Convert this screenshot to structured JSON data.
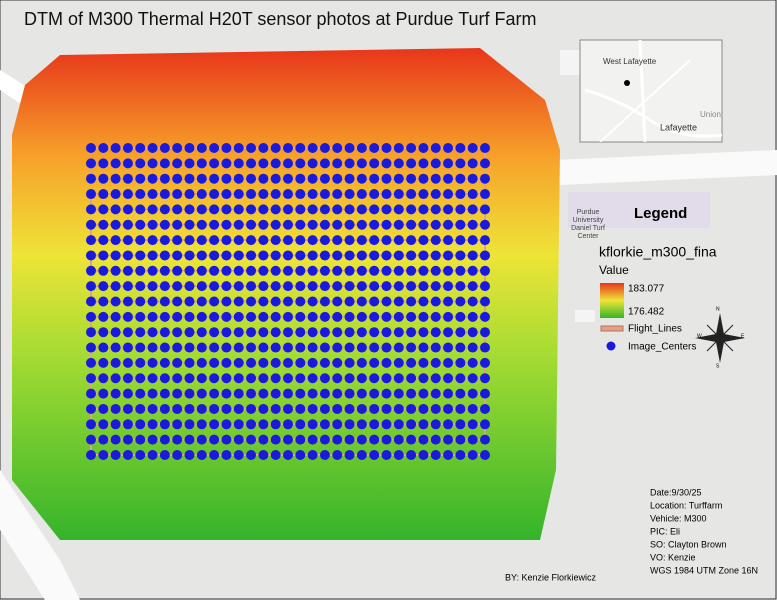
{
  "title": "DTM of M300 Thermal H20T sensor photos at Purdue Turf Farm",
  "inset": {
    "labels": [
      "West Lafayette",
      "Lafayette",
      "Union"
    ]
  },
  "basemap_label": [
    "Purdue",
    "University",
    "Daniel Turf",
    "Center"
  ],
  "legend": {
    "title": "Legend",
    "layer": "kflorkie_m300_fina",
    "field": "Value",
    "high": "183.077",
    "low": "176.482",
    "lines": "Flight_Lines",
    "points": "Image_Centers"
  },
  "compass": [
    "N",
    "E",
    "S",
    "W"
  ],
  "info": [
    "Date:9/30/25",
    "Location: Turffarm",
    "Vehicle: M300",
    "PIC: Eli",
    "SO: Clayton Brown",
    "VO: Kenzie",
    "WGS 1984 UTM Zone 16N"
  ],
  "credit": "BY: Kenzie Florkiewicz"
}
